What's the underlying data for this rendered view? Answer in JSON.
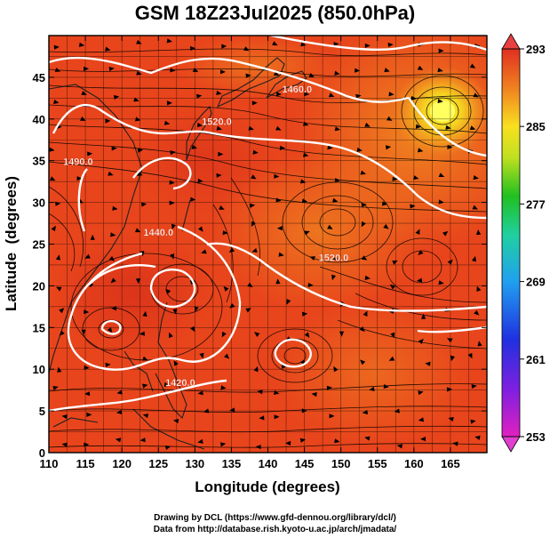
{
  "title": "GSM 18Z23Jul2025 (850.0hPa)",
  "chart_data": {
    "type": "heatmap",
    "title": "GSM 18Z23Jul2025 (850.0hPa)",
    "xlabel": "Longitude (degrees)",
    "ylabel": "Latitude  (degrees)",
    "xlim": [
      110,
      170
    ],
    "ylim": [
      0,
      50
    ],
    "xticks": [
      "110",
      "115",
      "120",
      "125",
      "130",
      "135",
      "140",
      "145",
      "150",
      "155",
      "160",
      "165"
    ],
    "yticks": [
      "0",
      "5",
      "10",
      "15",
      "20",
      "25",
      "30",
      "35",
      "40",
      "45"
    ],
    "colorbar": {
      "range": [
        253,
        293
      ],
      "tick_labels": [
        "293",
        "285",
        "277",
        "269",
        "261",
        "253"
      ]
    },
    "contour_labels": [
      {
        "text": "1460.0",
        "lon": 144,
        "lat": 43.2
      },
      {
        "text": "1520.0",
        "lon": 133,
        "lat": 39.3
      },
      {
        "text": "1490.0",
        "lon": 114,
        "lat": 34.5
      },
      {
        "text": "1440.0",
        "lon": 125,
        "lat": 26.0
      },
      {
        "text": "1520.0",
        "lon": 149,
        "lat": 23.0
      },
      {
        "text": "1420.0",
        "lon": 128,
        "lat": 8.0
      }
    ]
  },
  "colors": {
    "warm_field": "#e8401c",
    "cool_spot": "#f0e020",
    "contour": "#ffffff",
    "streamline": "#000000"
  },
  "credits": {
    "line1": "Drawing by DCL (https://www.gfd-dennou.org/library/dcl/)",
    "line2": "Data from http://database.rish.kyoto-u.ac.jp/arch/jmadata/"
  }
}
